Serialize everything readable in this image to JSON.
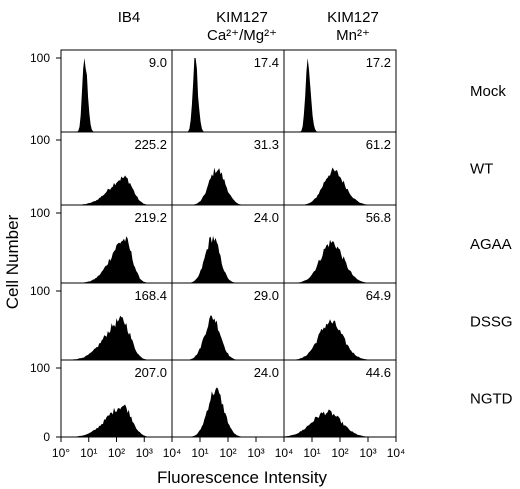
{
  "figure": {
    "column_headers": [
      {
        "line1": "IB4",
        "line2": ""
      },
      {
        "line1": "KIM127",
        "line2": "Ca²⁺/Mg²⁺"
      },
      {
        "line1": "KIM127",
        "line2": "Mn²⁺"
      }
    ],
    "row_labels": [
      "Mock",
      "WT",
      "AGAA",
      "DSSG",
      "NGTD"
    ],
    "y_title": "Cell Number",
    "x_title": "Fluorescence Intensity",
    "y_tick_labels": {
      "top": "100",
      "bottom": "0"
    },
    "x_tick_labels": [
      "10°",
      "10¹",
      "10²",
      "10³",
      "10⁴"
    ],
    "fill_color": "#000000",
    "frame_color": "#000000",
    "background": "#ffffff"
  },
  "chart_data": {
    "type": "histogram-grid",
    "title": "",
    "xlabel": "Fluorescence Intensity",
    "ylabel": "Cell Number",
    "x_scale": "log",
    "xlim": [
      1,
      10000
    ],
    "ylim": [
      0,
      100
    ],
    "columns": [
      "IB4",
      "KIM127 Ca²⁺/Mg²⁺",
      "KIM127 Mn²⁺"
    ],
    "rows": [
      "Mock",
      "WT",
      "AGAA",
      "DSSG",
      "NGTD"
    ],
    "values": [
      [
        "9.0",
        "17.4",
        "17.2"
      ],
      [
        "225.2",
        "31.3",
        "61.2"
      ],
      [
        "219.2",
        "24.0",
        "56.8"
      ],
      [
        "168.4",
        "29.0",
        "64.9"
      ],
      [
        "207.0",
        "24.0",
        "44.6"
      ]
    ]
  }
}
